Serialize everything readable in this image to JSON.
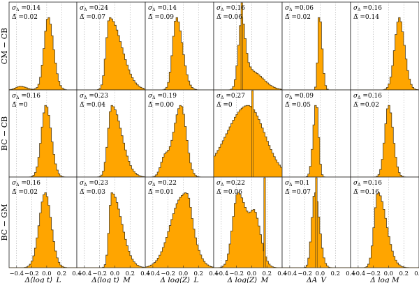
{
  "chart_data": {
    "type": "histogram-grid",
    "rows": [
      "CM − CB",
      "BC − CB",
      "BC − GM"
    ],
    "columns": [
      "Δ⟨log t⟩_L",
      "Δ⟨log t⟩_M",
      "Δ log⟨Z⟩_L",
      "Δ log⟨Z⟩_M",
      "ΔA_V",
      "Δ log M"
    ],
    "x_range": [
      -0.5,
      0.4
    ],
    "x_ticks": [
      -0.4,
      -0.2,
      0.0,
      0.2,
      0.4
    ],
    "x_tick_labels": [
      "−0.4",
      "−0.2",
      "0.0",
      "0.2",
      "0.4"
    ],
    "y_range": [
      0,
      1
    ],
    "grid_lines": "dotted vertical lines at each x tick",
    "bar_color": "#FFA500",
    "bar_edge_color": "#4a3a1a",
    "sigma_symbol": "σ",
    "sigma_sub": "Δ",
    "mean_symbol": "Δ̄",
    "panels": [
      [
        {
          "sigma": "0.14",
          "mean": "0.02",
          "shape": [
            [
              -0.35,
              0.05,
              0.06,
              0.08,
              0.3,
              0.0
            ],
            [
              0.02,
              1.0,
              0.055,
              0.07,
              0.0,
              0.0
            ]
          ],
          "spike": null
        },
        {
          "sigma": "0.24",
          "mean": "0.07",
          "shape": [
            [
              -0.07,
              1.0,
              0.045,
              0.16,
              0.0,
              0.0
            ]
          ],
          "spike": null
        },
        {
          "sigma": "0.14",
          "mean": "0.09",
          "shape": [
            [
              -0.09,
              1.0,
              0.05,
              0.08,
              0.0,
              0.0
            ]
          ],
          "spike": null
        },
        {
          "sigma": "0.16",
          "mean": "0.06",
          "shape": [
            [
              -0.13,
              1.0,
              0.045,
              0.05,
              0.0,
              0.0
            ],
            [
              0.0,
              0.26,
              0.05,
              0.15,
              0.12,
              0.0
            ]
          ],
          "spike": [
            -0.13,
            1.0
          ]
        },
        {
          "sigma": "0.06",
          "mean": "0.02",
          "shape": [
            [
              -0.01,
              1.0,
              0.02,
              0.035,
              0.0,
              0.0
            ]
          ],
          "spike": null
        },
        {
          "sigma": "0.16",
          "mean": "0.14",
          "shape": [
            [
              0.14,
              1.0,
              0.06,
              0.07,
              0.0,
              0.0
            ]
          ],
          "spike": null
        }
      ],
      [
        {
          "sigma": "0.16",
          "mean": "0",
          "shape": [
            [
              -0.01,
              1.0,
              0.06,
              0.07,
              0.0,
              0.0
            ]
          ],
          "spike": null
        },
        {
          "sigma": "0.23",
          "mean": "0.04",
          "shape": [
            [
              -0.04,
              1.0,
              0.05,
              0.13,
              0.0,
              0.0
            ]
          ],
          "spike": null
        },
        {
          "sigma": "0.19",
          "mean": "0.00",
          "shape": [
            [
              -0.03,
              1.0,
              0.1,
              0.07,
              0.0,
              0.0
            ],
            [
              -0.25,
              0.22,
              0.05,
              0.05,
              0.0,
              0.0
            ]
          ],
          "spike": null
        },
        {
          "sigma": "0.27",
          "mean": "0",
          "shape": [
            [
              -0.05,
              0.5,
              0.28,
              0.22,
              0.0,
              0.0
            ]
          ],
          "spike": [
            0.01,
            1.0
          ]
        },
        {
          "sigma": "0.09",
          "mean": "0.05",
          "shape": [
            [
              -0.05,
              1.0,
              0.04,
              0.03,
              0.0,
              0.0
            ]
          ],
          "spike": null
        },
        {
          "sigma": "0.16",
          "mean": "0.02",
          "shape": [
            [
              0.0,
              1.0,
              0.05,
              0.06,
              0.0,
              0.0
            ]
          ],
          "spike": null
        }
      ],
      [
        {
          "sigma": "0.16",
          "mean": "0.02",
          "shape": [
            [
              -0.02,
              1.0,
              0.08,
              0.08,
              0.0,
              0.0
            ]
          ],
          "spike": null
        },
        {
          "sigma": "0.23",
          "mean": "0.03",
          "shape": [
            [
              -0.04,
              1.0,
              0.035,
              0.13,
              0.0,
              0.0
            ]
          ],
          "spike": null
        },
        {
          "sigma": "0.22",
          "mean": "0.01",
          "shape": [
            [
              -0.01,
              0.85,
              0.16,
              0.13,
              0.0,
              0.0
            ],
            [
              0.07,
              0.14,
              0.04,
              0.04,
              0.0,
              0.0
            ]
          ],
          "spike": null
        },
        {
          "sigma": "0.22",
          "mean": "0.06",
          "shape": [
            [
              -0.18,
              0.6,
              0.07,
              0.13,
              0.0,
              0.0
            ],
            [
              0.05,
              0.32,
              0.06,
              0.08,
              0.0,
              0.0
            ]
          ],
          "spike": [
            0.17,
            1.0
          ]
        },
        {
          "sigma": "0.1",
          "mean": "0.07",
          "shape": [
            [
              -0.07,
              1.0,
              0.04,
              0.06,
              0.0,
              0.0
            ]
          ],
          "spike": [
            -0.05,
            1.0
          ]
        },
        {
          "sigma": "0.16",
          "mean": "0.16",
          "shape": [
            [
              -0.14,
              1.0,
              0.05,
              0.11,
              0.0,
              0.0
            ]
          ],
          "spike": null
        }
      ]
    ]
  }
}
